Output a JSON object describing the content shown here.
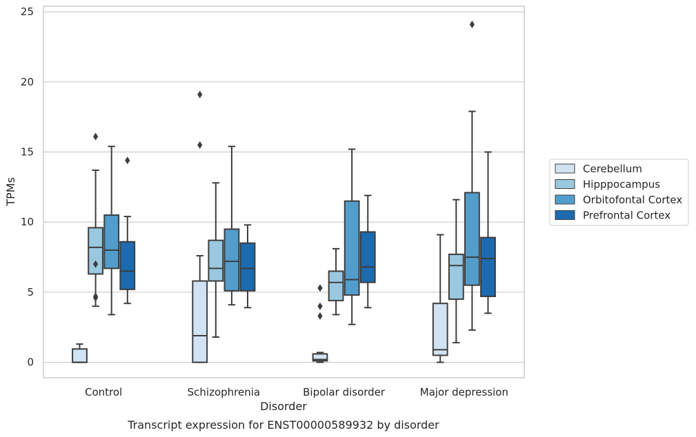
{
  "caption": "Transcript expression for ENST00000589932 by disorder",
  "chart_data": {
    "type": "boxplot",
    "xlabel": "Disorder",
    "ylabel": "TPMs",
    "ylim": [
      -1.1,
      25.4
    ],
    "yticks": [
      0,
      5,
      10,
      15,
      20,
      25
    ],
    "grid": true,
    "legend_position": "right",
    "categories": [
      "Control",
      "Schizophrenia",
      "Bipolar disorder",
      "Major depression"
    ],
    "series": [
      {
        "name": "Cerebellum",
        "color": "#d1e2f3",
        "boxes": [
          {
            "whisker_low": 0.0,
            "q1": 0.0,
            "median": 0.0,
            "q3": 0.95,
            "whisker_high": 1.3,
            "outliers": []
          },
          {
            "whisker_low": 0.0,
            "q1": 0.0,
            "median": 1.9,
            "q3": 5.8,
            "whisker_high": 7.6,
            "outliers": [
              15.5,
              19.1
            ]
          },
          {
            "whisker_low": 0.0,
            "q1": 0.1,
            "median": 0.2,
            "q3": 0.6,
            "whisker_high": 0.7,
            "outliers": [
              3.3,
              4.0,
              5.3
            ]
          },
          {
            "whisker_low": 0.0,
            "q1": 0.5,
            "median": 0.9,
            "q3": 4.2,
            "whisker_high": 9.1,
            "outliers": []
          }
        ]
      },
      {
        "name": "Hipppocampus",
        "color": "#9ac8e0",
        "boxes": [
          {
            "whisker_low": 4.0,
            "q1": 6.3,
            "median": 8.2,
            "q3": 9.6,
            "whisker_high": 13.7,
            "outliers": [
              4.6,
              4.7,
              7.0,
              16.1
            ]
          },
          {
            "whisker_low": 1.8,
            "q1": 5.8,
            "median": 6.7,
            "q3": 8.7,
            "whisker_high": 12.8,
            "outliers": []
          },
          {
            "whisker_low": 3.4,
            "q1": 4.4,
            "median": 5.7,
            "q3": 6.5,
            "whisker_high": 8.1,
            "outliers": []
          },
          {
            "whisker_low": 1.4,
            "q1": 4.5,
            "median": 6.9,
            "q3": 7.7,
            "whisker_high": 11.6,
            "outliers": []
          }
        ]
      },
      {
        "name": "Orbitofontal Cortex",
        "color": "#529dcc",
        "boxes": [
          {
            "whisker_low": 3.4,
            "q1": 6.7,
            "median": 8.0,
            "q3": 10.5,
            "whisker_high": 15.4,
            "outliers": []
          },
          {
            "whisker_low": 4.1,
            "q1": 5.1,
            "median": 7.2,
            "q3": 9.5,
            "whisker_high": 15.4,
            "outliers": []
          },
          {
            "whisker_low": 2.7,
            "q1": 4.8,
            "median": 5.9,
            "q3": 11.5,
            "whisker_high": 15.2,
            "outliers": []
          },
          {
            "whisker_low": 2.3,
            "q1": 5.5,
            "median": 7.5,
            "q3": 12.1,
            "whisker_high": 17.9,
            "outliers": [
              24.1
            ]
          }
        ]
      },
      {
        "name": "Prefrontal Cortex",
        "color": "#1c6aaf",
        "boxes": [
          {
            "whisker_low": 4.2,
            "q1": 5.2,
            "median": 6.5,
            "q3": 8.6,
            "whisker_high": 10.4,
            "outliers": [
              14.4
            ]
          },
          {
            "whisker_low": 3.9,
            "q1": 5.1,
            "median": 6.7,
            "q3": 8.5,
            "whisker_high": 9.8,
            "outliers": []
          },
          {
            "whisker_low": 3.9,
            "q1": 5.7,
            "median": 6.8,
            "q3": 9.3,
            "whisker_high": 11.9,
            "outliers": []
          },
          {
            "whisker_low": 3.5,
            "q1": 4.7,
            "median": 7.4,
            "q3": 8.9,
            "whisker_high": 15.0,
            "outliers": []
          }
        ]
      }
    ]
  }
}
